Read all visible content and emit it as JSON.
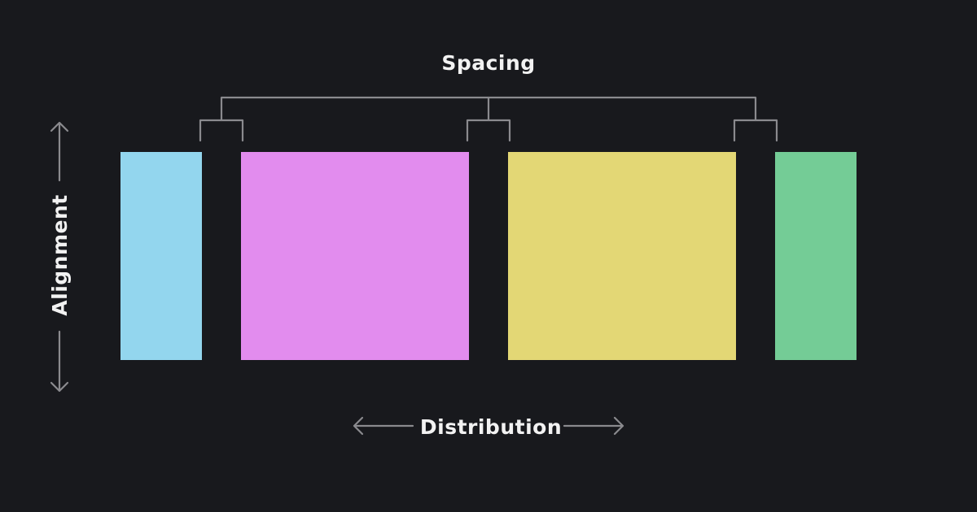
{
  "labels": {
    "spacing": "Spacing",
    "alignment": "Alignment",
    "distribution": "Distribution"
  },
  "blocks": [
    {
      "name": "block-blue",
      "color": "#93d6ee"
    },
    {
      "name": "block-pink",
      "color": "#e28cee"
    },
    {
      "name": "block-yellow",
      "color": "#e3d775"
    },
    {
      "name": "block-green",
      "color": "#74cc96"
    }
  ],
  "colors": {
    "background": "#18191d",
    "guide": "#8a8a8e",
    "text": "#f2f2f2"
  }
}
